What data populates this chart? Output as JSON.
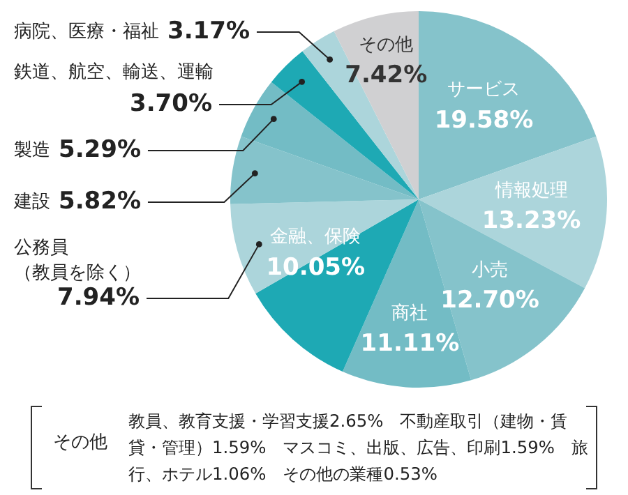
{
  "chart_data": {
    "type": "pie",
    "categories": [
      "サービス",
      "情報処理",
      "小売",
      "商社",
      "金融、保険",
      "公務員（教員を除く）",
      "建設",
      "製造",
      "鉄道、航空、輸送、運輸",
      "病院、医療・福祉",
      "その他"
    ],
    "values": [
      19.58,
      13.23,
      12.7,
      11.11,
      10.05,
      7.94,
      5.82,
      5.29,
      3.7,
      3.17,
      7.42
    ],
    "value_labels": [
      "19.58%",
      "13.23%",
      "12.70%",
      "11.11%",
      "10.05%",
      "7.94%",
      "5.82%",
      "5.29%",
      "3.70%",
      "3.17%",
      "7.42%"
    ],
    "colors": [
      "#85c3cb",
      "#acd5db",
      "#85c3cb",
      "#73bcc5",
      "#1ea9b4",
      "#acd5db",
      "#85c3cb",
      "#73bcc5",
      "#1ea9b4",
      "#acd5db",
      "#d0d0d2"
    ],
    "legend": false,
    "annotations": [
      "その他",
      "教員、教育支援・学習支援2.65%　不動産取引（建物・賃貸・管理）1.59%　マスコミ、出版、広告、印刷1.59%　旅行、ホテル1.06%　その他の業種0.53%"
    ]
  }
}
